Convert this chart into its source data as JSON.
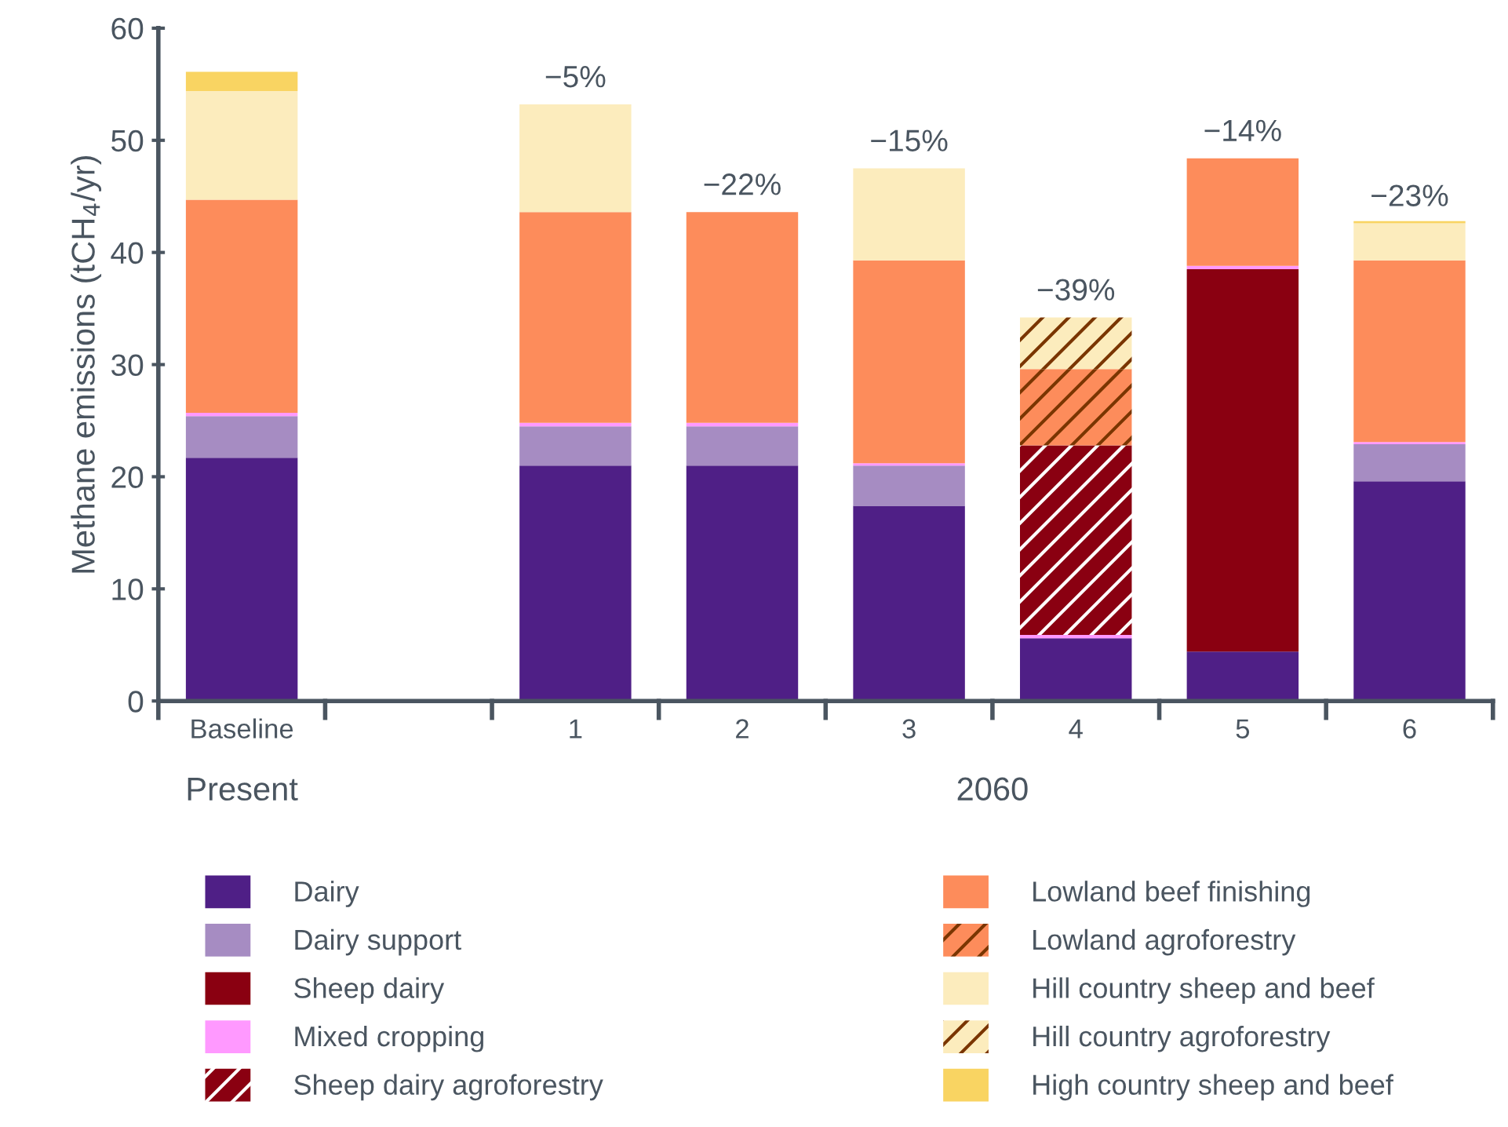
{
  "chart_data": {
    "type": "bar",
    "stacked": true,
    "ylabel": "Methane emissions (tCH$_{4}$/yr)",
    "categories": [
      "Baseline",
      null,
      "1",
      "2",
      "3",
      "4",
      "5",
      "6"
    ],
    "ylim": [
      0,
      60
    ],
    "yticks": [
      0,
      10,
      20,
      30,
      40,
      50,
      60
    ],
    "grid": false,
    "legend": "bottom",
    "series": [
      {
        "name": "Dairy",
        "color": "#4f1f86",
        "values": [
          21.7,
          null,
          21.0,
          21.0,
          17.4,
          5.6,
          4.4,
          19.6
        ]
      },
      {
        "name": "Dairy support",
        "color": "#a68cc2",
        "values": [
          3.7,
          null,
          3.5,
          3.5,
          3.6,
          null,
          null,
          3.3
        ]
      },
      {
        "name": "Sheep dairy",
        "color": "#8a0011",
        "values": [
          null,
          null,
          null,
          null,
          null,
          null,
          34.1,
          null
        ]
      },
      {
        "name": "Mixed cropping",
        "color": "#ff99ff",
        "values": [
          0.3,
          null,
          0.3,
          0.3,
          0.2,
          0.3,
          0.3,
          0.2
        ]
      },
      {
        "name": "Sheep dairy agroforestry",
        "color": "#8a0011",
        "values": [
          null,
          null,
          null,
          null,
          null,
          16.9,
          null,
          null
        ]
      },
      {
        "name": "Lowland beef finishing",
        "color": "#fd8c5b",
        "values": [
          19.0,
          null,
          18.8,
          18.8,
          18.1,
          null,
          9.6,
          16.2
        ]
      },
      {
        "name": "Lowland agroforestry",
        "color": "#fd8c5b",
        "values": [
          null,
          null,
          null,
          null,
          null,
          6.8,
          null,
          null
        ]
      },
      {
        "name": "Hill country sheep and beef",
        "color": "#fcecbd",
        "values": [
          9.7,
          null,
          9.6,
          null,
          8.2,
          null,
          null,
          3.3
        ]
      },
      {
        "name": "Hill country agroforestry",
        "color": "#fcecbd",
        "values": [
          null,
          null,
          null,
          null,
          null,
          4.6,
          null,
          null
        ]
      },
      {
        "name": "High country sheep and beef",
        "color": "#f9d462",
        "values": [
          1.7,
          null,
          null,
          null,
          null,
          null,
          null,
          0.2
        ]
      }
    ],
    "annotations": [
      {
        "text": "−5%",
        "x": "1",
        "y": 53.2
      },
      {
        "text": "−22%",
        "x": "2",
        "y": 43.6
      },
      {
        "text": "−15%",
        "x": "3",
        "y": 47.5
      },
      {
        "text": "−39%",
        "x": "4",
        "y": 34.2
      },
      {
        "text": "−14%",
        "x": "5",
        "y": 48.4
      },
      {
        "text": "−23%",
        "x": "6",
        "y": 42.6
      },
      "Present",
      "2060"
    ]
  }
}
